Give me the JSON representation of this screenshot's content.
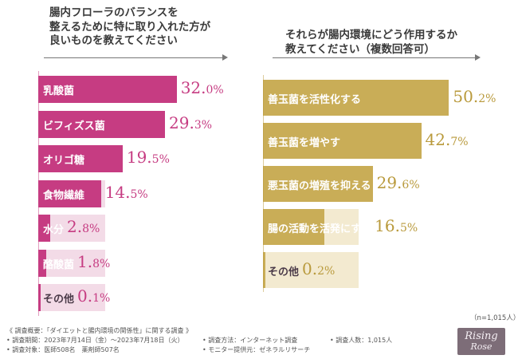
{
  "left": {
    "question_lines": [
      "腸内フローラのバランスを",
      "整えるために特に取り入れた方が",
      "良いものを教えてください"
    ]
  },
  "right": {
    "question_lines": [
      "それらが腸内環境にどう作用するか",
      "教えてください（複数回答可）"
    ]
  },
  "chart_data": [
    {
      "type": "bar",
      "orientation": "horizontal",
      "title": "腸内フローラのバランスを整えるために特に取り入れた方が良いものを教えてください",
      "categories": [
        "乳酸菌",
        "ビフィズス菌",
        "オリゴ糖",
        "食物繊維",
        "水分",
        "酪酸菌",
        "その他"
      ],
      "values": [
        32.0,
        29.3,
        19.5,
        14.5,
        2.8,
        1.8,
        0.1
      ],
      "labels": [
        [
          "32.",
          "0%"
        ],
        [
          "29.",
          "3%"
        ],
        [
          "19.",
          "5%"
        ],
        [
          "14.",
          "5%"
        ],
        [
          "2.",
          "8%"
        ],
        [
          "1.",
          "8%"
        ],
        [
          "0.",
          "1%"
        ]
      ],
      "color": "#c63c82",
      "xlim": [
        0,
        35
      ],
      "unit": "%"
    },
    {
      "type": "bar",
      "orientation": "horizontal",
      "title": "それらが腸内環境にどう作用するか教えてください（複数回答可）",
      "categories": [
        "善玉菌を活性化する",
        "善玉菌を増やす",
        "悪玉菌の増殖を抑える",
        "腸の活動を活発にする",
        "その他"
      ],
      "values": [
        50.2,
        42.7,
        29.6,
        16.5,
        0.2
      ],
      "labels": [
        [
          "50.",
          "2%"
        ],
        [
          "42.",
          "7%"
        ],
        [
          "29.",
          "6%"
        ],
        [
          "16.",
          "5%"
        ],
        [
          "0.",
          "2%"
        ]
      ],
      "color": "#c9ad57",
      "xlim": [
        0,
        57
      ],
      "unit": "%"
    }
  ],
  "colors": {
    "left_bar": "#c63c82",
    "left_value": "#c63c82",
    "left_bg": "#f3dbe7",
    "right_bar": "#c9ad57",
    "right_value": "#b99a3c",
    "right_bg": "#f3ead0"
  },
  "sample_note": "（n=1,015人）",
  "footer": {
    "title": "《 調査概要：「ダイエットと腸内環境の関係性」に関する調査 》",
    "period": "• 調査期間：2023年7月14日（金）〜2023年7月18日（火）",
    "target": "• 調査対象：医師508名　薬剤師507名",
    "method": "• 調査方法：インターネット調査",
    "provider": "• モニター提供元：ゼネラルリサーチ",
    "count": "• 調査人数：1,015人"
  },
  "logo": {
    "line1": "Rising",
    "line2": "Rose"
  }
}
